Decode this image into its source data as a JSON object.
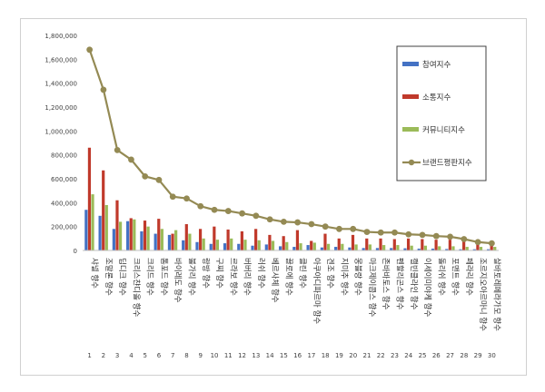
{
  "chart_data": {
    "type": "bar",
    "ylim": [
      0,
      1800000
    ],
    "yticks": [
      0,
      200000,
      400000,
      600000,
      800000,
      1000000,
      1200000,
      1400000,
      1600000,
      1800000
    ],
    "ytick_labels": [
      "0",
      "200,000",
      "400,000",
      "600,000",
      "800,000",
      "1,000,000",
      "1,200,000",
      "1,400,000",
      "1,600,000",
      "1,800,000"
    ],
    "grid": false,
    "legend_position": "top-right",
    "ranks": [
      "1",
      "2",
      "3",
      "4",
      "5",
      "6",
      "7",
      "8",
      "9",
      "10",
      "11",
      "12",
      "13",
      "14",
      "15",
      "16",
      "17",
      "18",
      "19",
      "20",
      "21",
      "22",
      "23",
      "24",
      "25",
      "26",
      "27",
      "28",
      "29",
      "30"
    ],
    "categories": [
      "샤넬 향수",
      "조말론 향수",
      "딥디크 향수",
      "크리스챤디올 향수",
      "크리드 향수",
      "톰포드 향수",
      "바이레도 향수",
      "불가리 향수",
      "랑방 향수",
      "구찌 향수",
      "르라보 향수",
      "버버리 향수",
      "러쉬 향수",
      "베르사체 향수",
      "끌로에 향수",
      "클린 향수",
      "아쿠아디파르마 향수",
      "겐조 향수",
      "지미추 향수",
      "몽블랑 향수",
      "마크제이콥스 향수",
      "존바바토스 향수",
      "펜할리곤스 향수",
      "캘빈클라인 향수",
      "이세이미야케 향수",
      "돌리쉬 향수",
      "포맨트 향수",
      "페라리 향수",
      "조르지오아르마니 향수",
      "살바토레페라가모 향수"
    ],
    "series": [
      {
        "name": "참여지수",
        "color": "#4472C4",
        "type": "bar",
        "values": [
          340000,
          290000,
          180000,
          245000,
          160000,
          140000,
          130000,
          85000,
          70000,
          55000,
          60000,
          55000,
          40000,
          50000,
          35000,
          30000,
          45000,
          25000,
          30000,
          25000,
          20000,
          20000,
          20000,
          18000,
          15000,
          15000,
          12000,
          10000,
          10000,
          10000
        ]
      },
      {
        "name": "소통지수",
        "color": "#C0392B",
        "type": "bar",
        "values": [
          860000,
          670000,
          420000,
          270000,
          250000,
          265000,
          140000,
          220000,
          180000,
          200000,
          175000,
          160000,
          180000,
          130000,
          120000,
          170000,
          80000,
          140000,
          100000,
          130000,
          100000,
          100000,
          95000,
          100000,
          95000,
          90000,
          90000,
          80000,
          90000,
          40000
        ]
      },
      {
        "name": "커뮤니티지수",
        "color": "#9BBB59",
        "type": "bar",
        "values": [
          470000,
          380000,
          240000,
          260000,
          200000,
          180000,
          170000,
          140000,
          100000,
          90000,
          100000,
          90000,
          85000,
          80000,
          70000,
          60000,
          65000,
          55000,
          55000,
          50000,
          50000,
          45000,
          45000,
          40000,
          40000,
          35000,
          35000,
          30000,
          30000,
          30000
        ]
      },
      {
        "name": "브랜드평판지수",
        "color": "#948A54",
        "type": "line",
        "values": [
          1680000,
          1345000,
          840000,
          760000,
          620000,
          590000,
          450000,
          435000,
          370000,
          340000,
          330000,
          310000,
          290000,
          260000,
          240000,
          235000,
          220000,
          200000,
          180000,
          180000,
          155000,
          150000,
          150000,
          135000,
          130000,
          120000,
          115000,
          95000,
          70000,
          60000
        ]
      }
    ]
  }
}
